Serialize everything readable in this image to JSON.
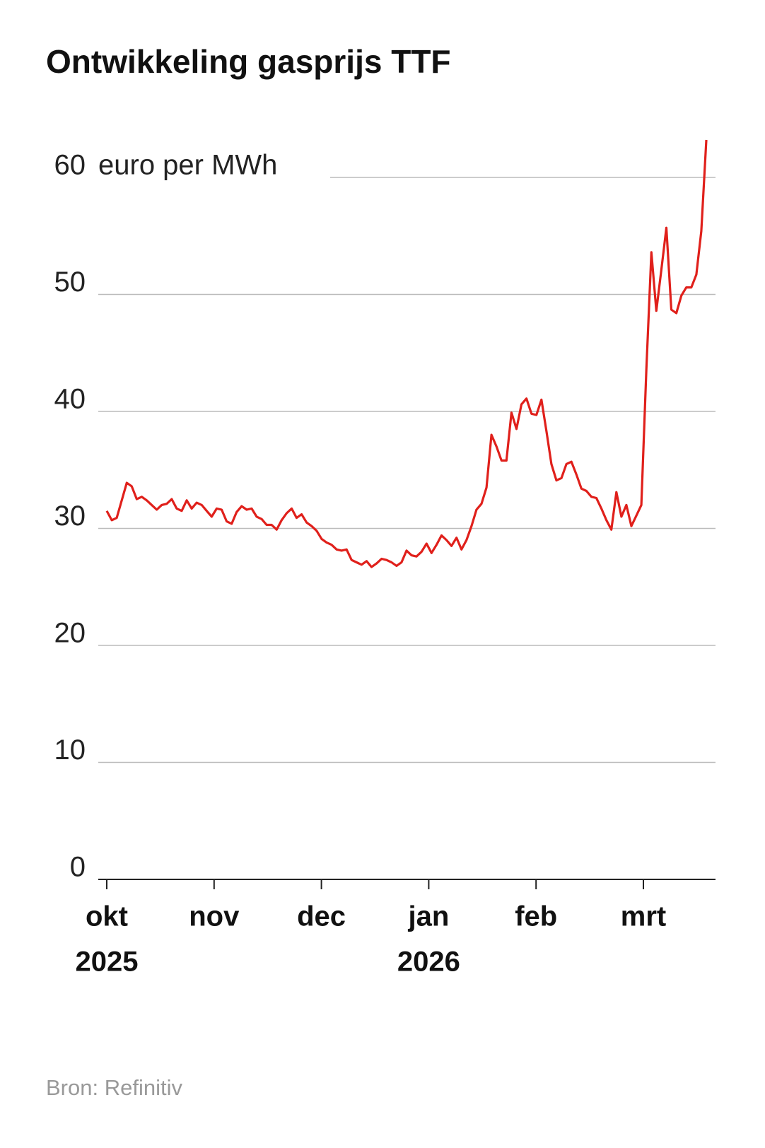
{
  "chart_data": {
    "type": "line",
    "title": "Ontwikkeling gasprijs TTF",
    "y_label": "euro per MWh",
    "source": "Bron: Refinitiv",
    "xticks": [
      "okt",
      "nov",
      "dec",
      "jan",
      "feb",
      "mrt"
    ],
    "xtick_years": [
      "2025",
      null,
      null,
      "2026",
      null,
      null
    ],
    "ylim": [
      0,
      60
    ],
    "yticks": [
      0,
      10,
      20,
      30,
      40,
      50,
      60
    ],
    "grid": true,
    "series": [
      {
        "name": "TTF",
        "color": "#e0201b",
        "values": [
          31.5,
          30.7,
          30.9,
          32.4,
          33.9,
          33.6,
          32.5,
          32.7,
          32.4,
          32.0,
          31.6,
          32.0,
          32.1,
          32.5,
          31.7,
          31.5,
          32.4,
          31.7,
          32.2,
          32.0,
          31.5,
          31.0,
          31.7,
          31.6,
          30.6,
          30.4,
          31.4,
          31.9,
          31.6,
          31.7,
          31.0,
          30.8,
          30.3,
          30.3,
          29.9,
          30.7,
          31.3,
          31.7,
          30.9,
          31.2,
          30.5,
          30.2,
          29.8,
          29.1,
          28.8,
          28.6,
          28.2,
          28.1,
          28.2,
          27.3,
          27.1,
          26.9,
          27.2,
          26.7,
          27.0,
          27.4,
          27.3,
          27.1,
          26.8,
          27.1,
          28.1,
          27.7,
          27.6,
          28.0,
          28.7,
          27.9,
          28.6,
          29.4,
          29.0,
          28.5,
          29.2,
          28.2,
          29.0,
          30.2,
          31.6,
          32.1,
          33.5,
          38.0,
          37.0,
          35.8,
          35.8,
          39.9,
          38.5,
          40.6,
          41.1,
          39.8,
          39.7,
          41.0,
          38.3,
          35.5,
          34.1,
          34.3,
          35.5,
          35.7,
          34.6,
          33.4,
          33.2,
          32.7,
          32.6,
          31.7,
          30.7,
          29.9,
          33.1,
          31.0,
          32.0,
          30.2,
          31.1,
          32.0,
          43.6,
          53.6,
          48.6,
          52.1,
          55.7,
          48.7,
          48.4,
          49.9,
          50.6,
          50.6,
          51.7,
          55.4,
          63.2
        ]
      }
    ]
  }
}
